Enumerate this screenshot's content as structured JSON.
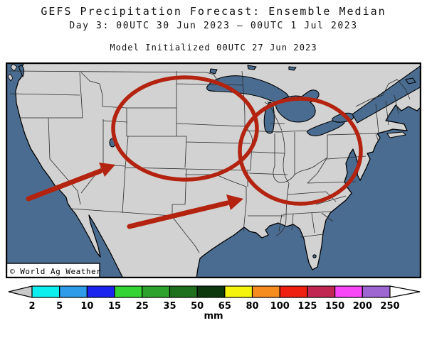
{
  "header": {
    "line1": "GEFS Precipitation Forecast: Ensemble Median",
    "line2": "Day 3: 00UTC 30 Jun 2023 — 00UTC 1 Jul 2023",
    "line3": "Model Initialized 00UTC 27 Jun 2023"
  },
  "map": {
    "watermark": "© World Ag Weather"
  },
  "colorbar": {
    "unit": "mm",
    "tick_labels": [
      "2",
      "5",
      "10",
      "15",
      "25",
      "35",
      "50",
      "65",
      "80",
      "100",
      "125",
      "150",
      "200",
      "250"
    ],
    "segment_colors": [
      "#0defef",
      "#2e9ce8",
      "#1b24ee",
      "#33d433",
      "#2da32d",
      "#1e6f1e",
      "#0d380d",
      "#f4f40c",
      "#f78c1e",
      "#ef2010",
      "#c12552",
      "#f747f7",
      "#9d66d0"
    ],
    "left_arrow_color": "#c9c9c9",
    "right_arrow_color": "#ffffff"
  },
  "palette": {
    "ocean": "#4a6c90",
    "land": "#d2d2d2",
    "annotation": "#b3230f",
    "p2": "#0defef",
    "p5": "#2e9ce8",
    "p10": "#1b24ee",
    "p15": "#33d433"
  }
}
